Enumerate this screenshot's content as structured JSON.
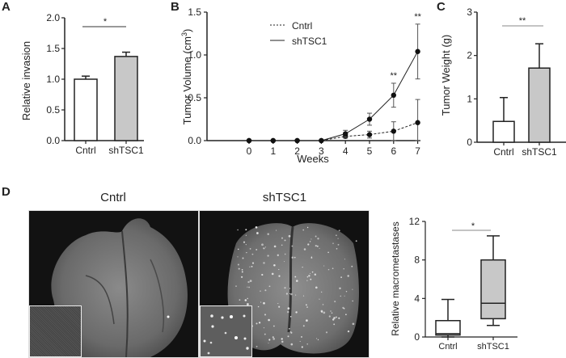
{
  "panels": {
    "A": {
      "letter": "A"
    },
    "B": {
      "letter": "B"
    },
    "C": {
      "letter": "C"
    },
    "D": {
      "letter": "D",
      "image_titles": [
        "Cntrl",
        "shTSC1"
      ]
    }
  },
  "chart_data": [
    {
      "panel": "A",
      "type": "bar",
      "title": "",
      "xlabel": "",
      "ylabel": "Relative invasion",
      "categories": [
        "Cntrl",
        "shTSC1"
      ],
      "values": [
        1.0,
        1.37
      ],
      "errors": [
        0.05,
        0.07
      ],
      "bar_colors": [
        "#ffffff",
        "#c8c8c8"
      ],
      "ylim": [
        0,
        2.0
      ],
      "yticks": [
        "0.0",
        "0.5",
        "1.0",
        "1.5",
        "2.0"
      ],
      "significance": [
        {
          "between": [
            "Cntrl",
            "shTSC1"
          ],
          "label": "*"
        }
      ],
      "grid": false
    },
    {
      "panel": "B",
      "type": "line",
      "title": "",
      "xlabel": "Weeks",
      "ylabel": "Tumor Volume (cm³)",
      "x": [
        0,
        1,
        2,
        3,
        4,
        5,
        6,
        7
      ],
      "series": [
        {
          "name": "Cntrl",
          "style": "dashed",
          "values": [
            0,
            0,
            0,
            0,
            0.05,
            0.07,
            0.11,
            0.21
          ],
          "errors": [
            0,
            0,
            0,
            0,
            0.02,
            0.04,
            0.11,
            0.27
          ]
        },
        {
          "name": "shTSC1",
          "style": "solid",
          "values": [
            0,
            0,
            0,
            0,
            0.08,
            0.25,
            0.53,
            1.04
          ],
          "errors": [
            0,
            0,
            0,
            0,
            0.04,
            0.07,
            0.14,
            0.32
          ]
        }
      ],
      "ylim": [
        0,
        1.5
      ],
      "yticks": [
        "0.0",
        "0.5",
        "1.0",
        "1.5"
      ],
      "xticks": [
        "0",
        "1",
        "2",
        "3",
        "4",
        "5",
        "6",
        "7"
      ],
      "annotations": [
        {
          "x": 6,
          "label": "**"
        },
        {
          "x": 7,
          "label": "**"
        }
      ],
      "legend": {
        "position": "upper-left",
        "entries": [
          "Cntrl",
          "shTSC1"
        ]
      },
      "grid": false
    },
    {
      "panel": "C",
      "type": "bar",
      "title": "",
      "xlabel": "",
      "ylabel": "Tumor Weight (g)",
      "categories": [
        "Cntrl",
        "shTSC1"
      ],
      "values": [
        0.48,
        1.71
      ],
      "errors": [
        0.55,
        0.56
      ],
      "bar_colors": [
        "#ffffff",
        "#c8c8c8"
      ],
      "ylim": [
        0,
        3
      ],
      "yticks": [
        "0",
        "1",
        "2",
        "3"
      ],
      "significance": [
        {
          "between": [
            "Cntrl",
            "shTSC1"
          ],
          "label": "**"
        }
      ],
      "grid": false
    },
    {
      "panel": "D",
      "type": "box",
      "title": "",
      "xlabel": "",
      "ylabel": "Relative macrometastases",
      "categories": [
        "Cntrl",
        "shTSC1"
      ],
      "boxes": [
        {
          "name": "Cntrl",
          "min": 0.0,
          "q1": 0.2,
          "median": 0.35,
          "q3": 1.7,
          "max": 3.9
        },
        {
          "name": "shTSC1",
          "min": 1.2,
          "q1": 1.9,
          "median": 3.5,
          "q3": 8.0,
          "max": 10.5
        }
      ],
      "box_colors": [
        "#ffffff",
        "#c8c8c8"
      ],
      "ylim": [
        0,
        12
      ],
      "yticks": [
        "0",
        "4",
        "8",
        "12"
      ],
      "significance": [
        {
          "between": [
            "Cntrl",
            "shTSC1"
          ],
          "label": "*"
        }
      ],
      "grid": false
    }
  ]
}
